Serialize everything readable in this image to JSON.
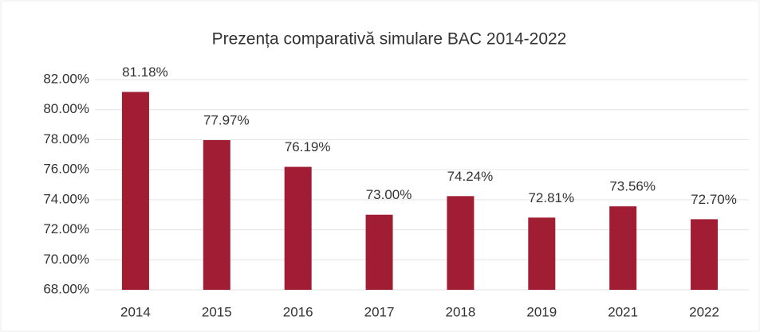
{
  "chart_data": {
    "type": "bar",
    "title": "Prezența comparativă simulare BAC 2014-2022",
    "categories": [
      "2014",
      "2015",
      "2016",
      "2017",
      "2018",
      "2019",
      "2021",
      "2022"
    ],
    "values": [
      81.18,
      77.97,
      76.19,
      73.0,
      74.24,
      72.81,
      73.56,
      72.7
    ],
    "value_labels": [
      "81.18%",
      "77.97%",
      "76.19%",
      "73.00%",
      "74.24%",
      "72.81%",
      "73.56%",
      "72.70%"
    ],
    "color": "#a11d33",
    "ylim": [
      68,
      82
    ],
    "yticks": [
      {
        "value": 68,
        "label": "68.00%"
      },
      {
        "value": 70,
        "label": "70.00%"
      },
      {
        "value": 72,
        "label": "72.00%"
      },
      {
        "value": 74,
        "label": "74.00%"
      },
      {
        "value": 76,
        "label": "76.00%"
      },
      {
        "value": 78,
        "label": "78.00%"
      },
      {
        "value": 80,
        "label": "80.00%"
      },
      {
        "value": 82,
        "label": "82.00%"
      }
    ],
    "grid": true
  }
}
